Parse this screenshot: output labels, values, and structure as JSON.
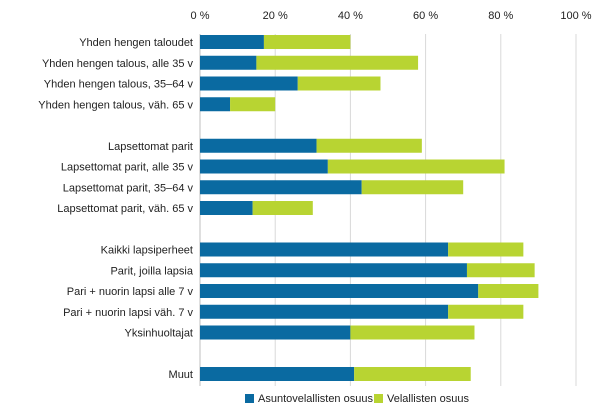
{
  "chart_data": {
    "type": "bar",
    "orientation": "horizontal",
    "stacked": true,
    "title": "",
    "xlabel": "",
    "ylabel": "",
    "xlim": [
      0,
      100
    ],
    "x_ticks": [
      0,
      20,
      40,
      60,
      80,
      100
    ],
    "x_tick_labels": [
      "0 %",
      "20 %",
      "40 %",
      "60 %",
      "80 %",
      "100 %"
    ],
    "grid": true,
    "legend_position": "bottom",
    "categories": [
      "Yhden hengen taloudet",
      "Yhden hengen talous, alle 35 v",
      "Yhden hengen talous, 35–64 v",
      "Yhden hengen talous, väh. 65 v",
      "",
      "Lapsettomat parit",
      "Lapsettomat parit, alle 35 v",
      "Lapsettomat parit, 35–64 v",
      "Lapsettomat parit, väh. 65 v",
      "",
      "Kaikki lapsiperheet",
      "Parit, joilla lapsia",
      "Pari + nuorin lapsi alle 7 v",
      "Pari + nuorin lapsi väh. 7 v",
      "Yksinhuoltajat",
      "",
      "Muut"
    ],
    "series": [
      {
        "name": "Asuntovelallisten osuus",
        "color": "#0a6aa1",
        "values": [
          17,
          15,
          26,
          8,
          null,
          31,
          34,
          43,
          14,
          null,
          66,
          71,
          74,
          66,
          40,
          null,
          41
        ]
      },
      {
        "name": "Velallisten osuus",
        "color": "#b8d432",
        "values": [
          23,
          43,
          22,
          12,
          null,
          28,
          47,
          27,
          16,
          null,
          20,
          18,
          16,
          20,
          33,
          null,
          31
        ]
      }
    ]
  }
}
